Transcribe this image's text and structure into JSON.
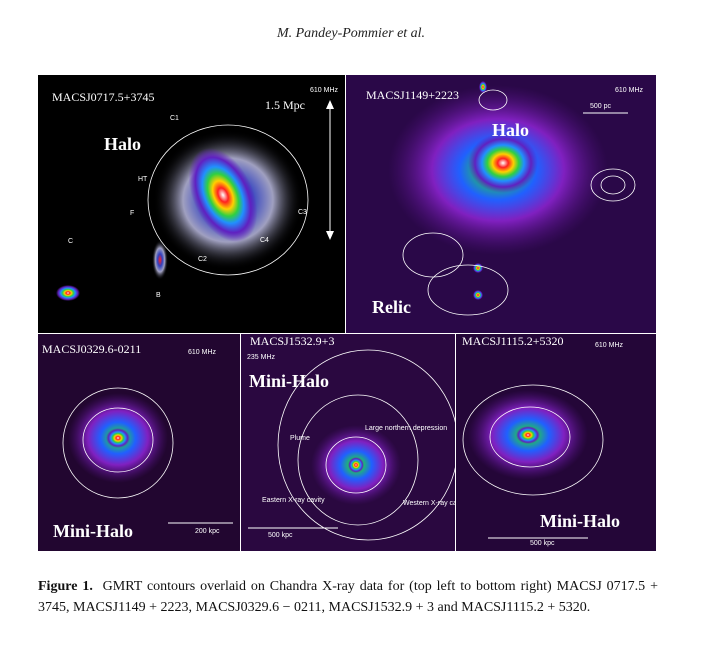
{
  "header": {
    "running_title": "M. Pandey-Pommier et al."
  },
  "figure": {
    "panels": [
      {
        "name": "MACSJ0717.5+3745",
        "frequency": "610 MHz",
        "scale": "1.5 Mpc",
        "feature": "Halo",
        "labels": [
          "C1",
          "HT",
          "F",
          "C",
          "B",
          "C2",
          "C3",
          "C4"
        ]
      },
      {
        "name": "MACSJ1149+2223",
        "frequency": "610 MHz",
        "scale": "500 pc",
        "feature": "Halo",
        "labels": [
          "Relic"
        ]
      },
      {
        "name": "MACSJ0329.6-0211",
        "frequency": "610 MHz",
        "scale": "200 kpc",
        "feature": "Mini-Halo",
        "labels": []
      },
      {
        "name": "MACSJ1532.9+3",
        "frequency": "235 MHz",
        "scale": "500 kpc",
        "feature": "Mini-Halo",
        "labels": [
          "Large northern depression",
          "Plume",
          "Eastern X-ray cavity",
          "Western X-ray cavity"
        ]
      },
      {
        "name": "MACSJ1115.2+5320",
        "frequency": "610 MHz",
        "scale": "500 kpc",
        "feature": "Mini-Halo",
        "labels": []
      }
    ],
    "caption": {
      "label": "Figure 1.",
      "text": "GMRT contours overlaid on Chandra X-ray data for (top left to bottom right) MACSJ 0717.5 + 3745, MACSJ1149 + 2223, MACSJ0329.6 − 0211, MACSJ1532.9 + 3 and MACSJ1115.2 + 5320."
    }
  }
}
